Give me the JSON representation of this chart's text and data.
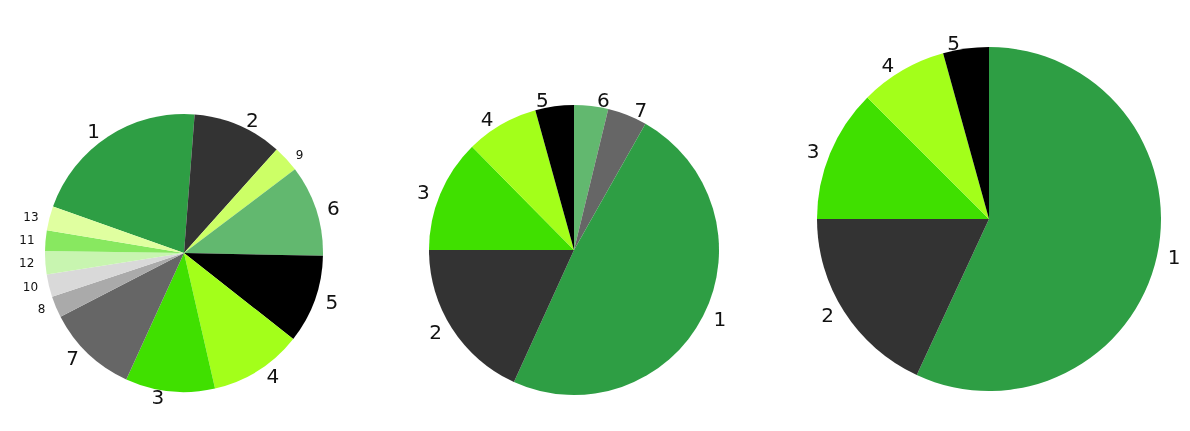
{
  "chart_data": [
    {
      "type": "pie",
      "categories": [
        "1",
        "2",
        "9",
        "6",
        "5",
        "4",
        "3",
        "7",
        "8",
        "10",
        "12",
        "11",
        "13"
      ],
      "values": [
        20.8,
        10.4,
        3.1,
        10.6,
        10.3,
        10.8,
        10.4,
        10.6,
        2.5,
        2.6,
        2.7,
        2.4,
        2.8
      ],
      "colors": [
        "#2e9e44",
        "#333333",
        "#ccff66",
        "#62b86f",
        "#000000",
        "#a3ff1a",
        "#40e000",
        "#666666",
        "#aaaaaa",
        "#d9d9d9",
        "#c8f5b0",
        "#88e860",
        "#e0ffa0"
      ]
    },
    {
      "type": "pie",
      "categories": [
        "6",
        "7",
        "1",
        "2",
        "3",
        "4",
        "5"
      ],
      "values": [
        3.8,
        4.4,
        48.6,
        18.2,
        12.6,
        8.1,
        4.3
      ],
      "colors": [
        "#62b86f",
        "#666666",
        "#2e9e44",
        "#333333",
        "#40e000",
        "#a3ff1a",
        "#000000"
      ]
    },
    {
      "type": "pie",
      "categories": [
        "1",
        "2",
        "3",
        "4",
        "5"
      ],
      "values": [
        56.9,
        18.1,
        12.5,
        8.2,
        4.3
      ],
      "colors": [
        "#2e9e44",
        "#333333",
        "#40e000",
        "#a3ff1a",
        "#000000"
      ]
    }
  ]
}
